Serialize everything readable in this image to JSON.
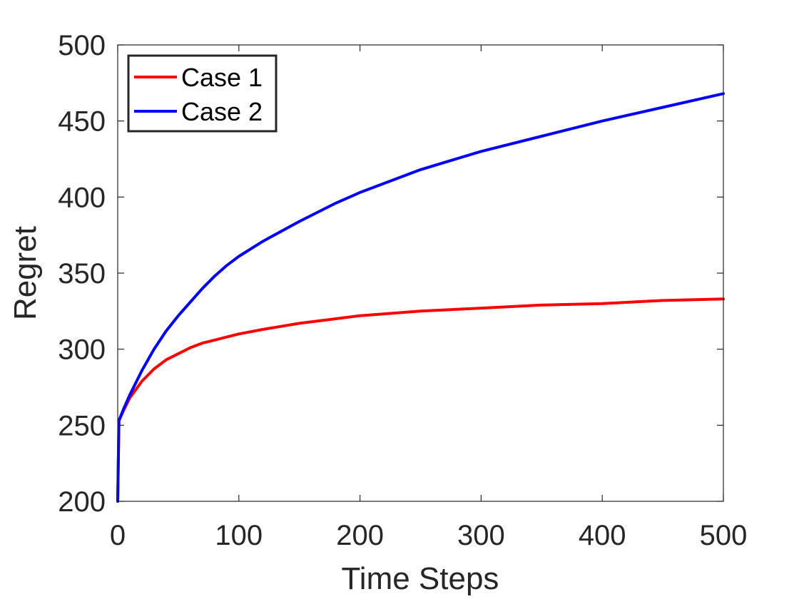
{
  "chart_data": {
    "type": "line",
    "xlabel": "Time Steps",
    "ylabel": "Regret",
    "xlim": [
      0,
      500
    ],
    "ylim": [
      200,
      500
    ],
    "xticks": [
      0,
      100,
      200,
      300,
      400,
      500
    ],
    "yticks": [
      200,
      250,
      300,
      350,
      400,
      450,
      500
    ],
    "grid": false,
    "legend_position": "top-left",
    "series": [
      {
        "name": "Case 1",
        "color": "#ff0000",
        "x": [
          0,
          1,
          5,
          10,
          20,
          30,
          40,
          50,
          60,
          70,
          80,
          90,
          100,
          120,
          150,
          180,
          200,
          250,
          300,
          350,
          400,
          450,
          500
        ],
        "y": [
          200,
          253,
          260,
          268,
          279,
          287,
          293,
          297,
          301,
          304,
          306,
          308,
          310,
          313,
          317,
          320,
          322,
          325,
          327,
          329,
          330,
          332,
          333
        ]
      },
      {
        "name": "Case 2",
        "color": "#0000ff",
        "x": [
          0,
          1,
          5,
          10,
          20,
          30,
          40,
          50,
          60,
          70,
          80,
          90,
          100,
          120,
          150,
          180,
          200,
          250,
          300,
          350,
          400,
          450,
          500
        ],
        "y": [
          200,
          253,
          261,
          270,
          286,
          300,
          312,
          322,
          331,
          340,
          348,
          355,
          361,
          371,
          384,
          396,
          403,
          418,
          430,
          440,
          450,
          459,
          468
        ]
      }
    ]
  }
}
